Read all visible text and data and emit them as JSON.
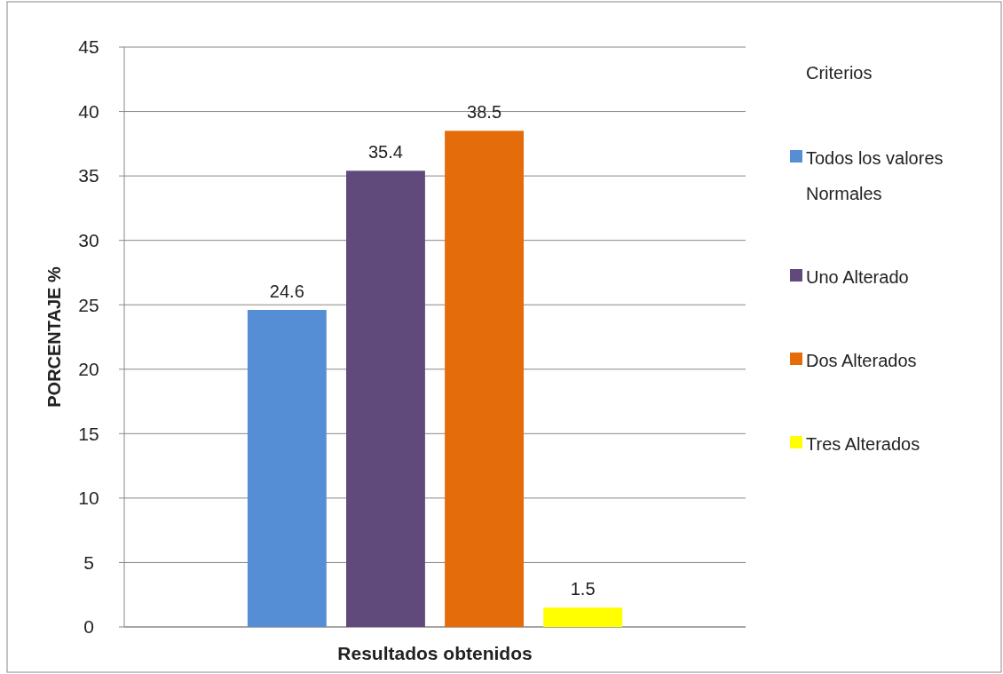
{
  "chart_data": {
    "type": "bar",
    "ylabel": "PORCENTAJE %",
    "xlabel": "Resultados obtenidos",
    "legend_title": "Criterios",
    "categories": [
      null
    ],
    "series": [
      {
        "name": "Todos los valores Normales",
        "color": "#558ed5",
        "values": [
          24.6
        ]
      },
      {
        "name": "Uno Alterado",
        "color": "#604a7b",
        "values": [
          35.4
        ]
      },
      {
        "name": "Dos Alterados",
        "color": "#e46c0a",
        "values": [
          38.5
        ]
      },
      {
        "name": "Tres Alterados",
        "color": "#ffff00",
        "values": [
          1.5
        ]
      }
    ],
    "ylim": [
      0,
      45
    ],
    "yticks": [
      0,
      5,
      10,
      15,
      20,
      25,
      30,
      35,
      40,
      45
    ],
    "grid": "y",
    "legend": "right",
    "data_labels": true
  }
}
